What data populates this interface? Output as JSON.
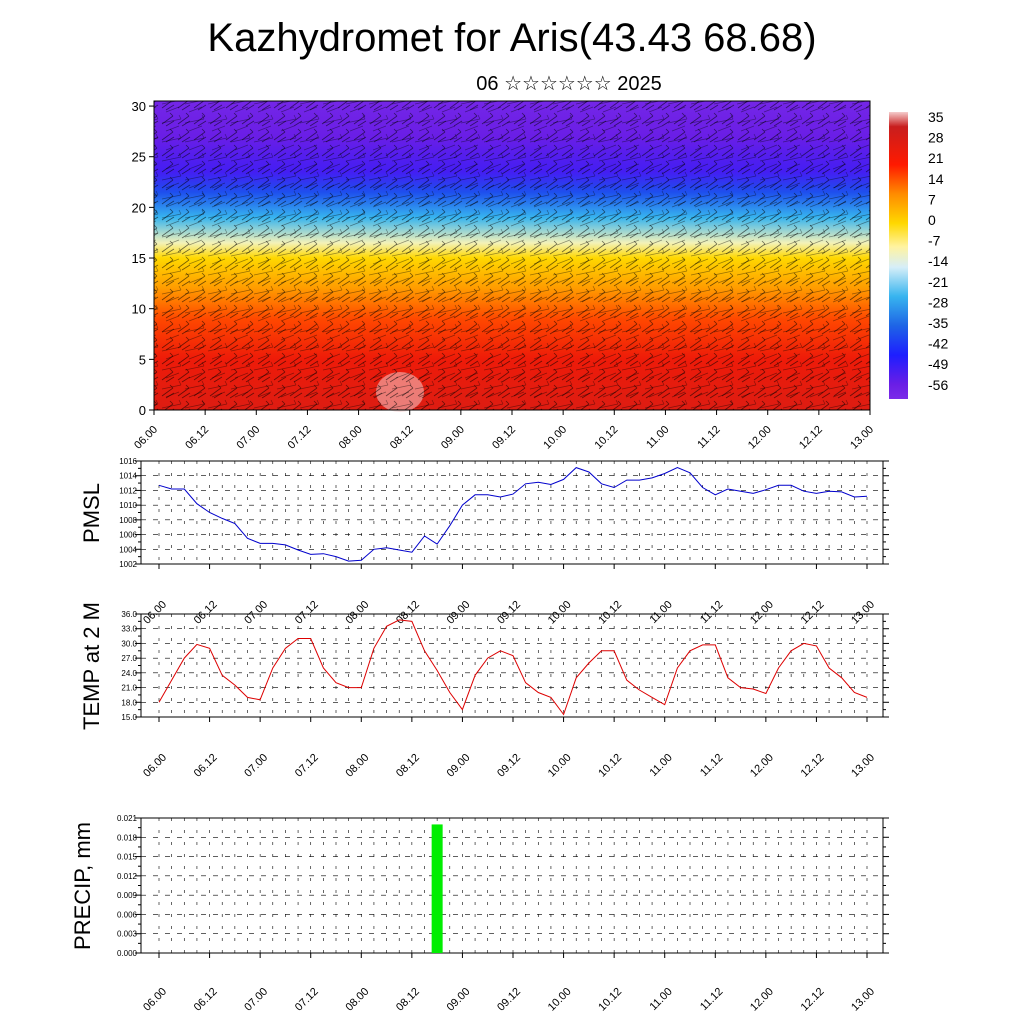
{
  "header": {
    "title": "Kazhydromet for Aris(43.43 68.68)",
    "subtitle": "06 ☆☆☆☆☆☆ 2025"
  },
  "x_tick_labels": [
    "06.00",
    "06.12",
    "07.00",
    "07.12",
    "08.00",
    "08.12",
    "09.00",
    "09.12",
    "10.00",
    "10.12",
    "11.00",
    "11.12",
    "12.00",
    "12.12",
    "13.00"
  ],
  "chart_data": [
    {
      "type": "heatmap",
      "title": "Kazhydromet for Aris(43.43 68.68)",
      "subtitle": "06 ☆☆☆☆☆☆ 2025",
      "x": [
        "06.00",
        "06.12",
        "07.00",
        "07.12",
        "08.00",
        "08.12",
        "09.00",
        "09.12",
        "10.00",
        "10.12",
        "11.00",
        "11.12",
        "12.00",
        "12.12",
        "13.00"
      ],
      "ylim": [
        0,
        30.5
      ],
      "yticks": [
        0,
        5,
        10,
        15,
        20,
        25,
        30
      ],
      "overlay": "wind barbs",
      "colorbar": {
        "labels": [
          "35",
          "28",
          "21",
          "14",
          "7",
          "0",
          "-7",
          "-14",
          "-21",
          "-28",
          "-35",
          "-42",
          "-49",
          "-56"
        ],
        "stops": [
          {
            "value": 38,
            "color": "#f4cccc"
          },
          {
            "value": 33,
            "color": "#c81e1e"
          },
          {
            "value": 20,
            "color": "#ff1a00"
          },
          {
            "value": 10,
            "color": "#ff8c00"
          },
          {
            "value": 0,
            "color": "#ffd800"
          },
          {
            "value": -8,
            "color": "#fff3a0"
          },
          {
            "value": -15,
            "color": "#d6eef8"
          },
          {
            "value": -25,
            "color": "#37b4ef"
          },
          {
            "value": -35,
            "color": "#1e64e6"
          },
          {
            "value": -45,
            "color": "#1e1eff"
          },
          {
            "value": -55,
            "color": "#6a1ee6"
          },
          {
            "value": -60,
            "color": "#7b2be8"
          }
        ]
      },
      "profile_by_height": [
        {
          "y": 0,
          "value": 28
        },
        {
          "y": 5,
          "value": 24
        },
        {
          "y": 9,
          "value": 16
        },
        {
          "y": 12,
          "value": 8
        },
        {
          "y": 15,
          "value": 0
        },
        {
          "y": 16.5,
          "value": -10
        },
        {
          "y": 19,
          "value": -25
        },
        {
          "y": 21.5,
          "value": -38
        },
        {
          "y": 23.5,
          "value": -50
        },
        {
          "y": 25,
          "value": -52
        },
        {
          "y": 27,
          "value": -55
        },
        {
          "y": 30.5,
          "value": -58
        }
      ]
    },
    {
      "type": "line",
      "ylabel": "PMSL",
      "ylim": [
        1002,
        1016
      ],
      "yticks": [
        "1002",
        "1004",
        "1006",
        "1008",
        "1010",
        "1012",
        "1014",
        "1016"
      ],
      "color": "#0000cc",
      "x": [
        0,
        1,
        2,
        3,
        4,
        5,
        6,
        7,
        8,
        9,
        10,
        11,
        12,
        13,
        14,
        15,
        16,
        17,
        18,
        19,
        20,
        21,
        22,
        23,
        24,
        25,
        26,
        27,
        28,
        29,
        30,
        31,
        32,
        33,
        34,
        35,
        36,
        37,
        38,
        39,
        40,
        41,
        42,
        43,
        44,
        45,
        46,
        47,
        48,
        49,
        50,
        51,
        52,
        53,
        54,
        55,
        56
      ],
      "values": [
        1012.7,
        1012.2,
        1012.2,
        1010.2,
        1009.0,
        1008.2,
        1007.5,
        1005.5,
        1004.8,
        1004.8,
        1004.6,
        1003.9,
        1003.3,
        1003.4,
        1003.0,
        1002.4,
        1002.5,
        1004.0,
        1004.2,
        1003.9,
        1003.6,
        1005.8,
        1004.7,
        1007.2,
        1010.0,
        1011.4,
        1011.4,
        1011.1,
        1011.5,
        1012.9,
        1013.1,
        1012.8,
        1013.5,
        1015.1,
        1014.5,
        1012.9,
        1012.4,
        1013.4,
        1013.4,
        1013.7,
        1014.3,
        1015.1,
        1014.4,
        1012.4,
        1011.4,
        1012.2,
        1011.9,
        1011.6,
        1012.1,
        1012.7,
        1012.7,
        1011.9,
        1011.6,
        1011.9,
        1011.8,
        1011.1,
        1011.2
      ]
    },
    {
      "type": "line",
      "ylabel": "TEMP at 2 M",
      "ylim": [
        15,
        36
      ],
      "yticks": [
        "15.0",
        "18.0",
        "21.0",
        "24.0",
        "27.0",
        "30.0",
        "33.0",
        "36.0"
      ],
      "color": "#dd0000",
      "x": [
        0,
        1,
        2,
        3,
        4,
        5,
        6,
        7,
        8,
        9,
        10,
        11,
        12,
        13,
        14,
        15,
        16,
        17,
        18,
        19,
        20,
        21,
        22,
        23,
        24,
        25,
        26,
        27,
        28,
        29,
        30,
        31,
        32,
        33,
        34,
        35,
        36,
        37,
        38,
        39,
        40,
        41,
        42,
        43,
        44,
        45,
        46,
        47,
        48,
        49,
        50,
        51,
        52,
        53,
        54,
        55,
        56
      ],
      "values": [
        18,
        22.5,
        27,
        29.8,
        29,
        23.5,
        21.5,
        19,
        18.5,
        25,
        29,
        31,
        31,
        25,
        22,
        21,
        21,
        29,
        33.5,
        34.8,
        34.5,
        28.5,
        24.5,
        20,
        16.5,
        23.5,
        27,
        28.5,
        27.5,
        22,
        20,
        19,
        15.5,
        23,
        26,
        28.5,
        28.5,
        22.5,
        20.5,
        19,
        17.5,
        25,
        28.5,
        29.7,
        29.7,
        23,
        21,
        20.7,
        19.8,
        25,
        28.5,
        30,
        29.5,
        25,
        23,
        20,
        19
      ]
    },
    {
      "type": "bar",
      "ylabel": "PRECIP, mm",
      "ylim": [
        0,
        0.021
      ],
      "yticks": [
        "0.000",
        "0.003",
        "0.006",
        "0.009",
        "0.012",
        "0.015",
        "0.018",
        "0.021"
      ],
      "color": "#00ee00",
      "bars": [
        {
          "x": "08.18",
          "value": 0.02
        }
      ]
    }
  ]
}
